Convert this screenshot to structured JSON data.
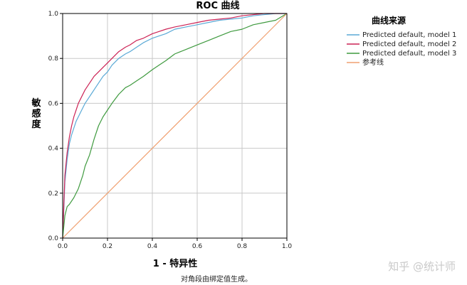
{
  "chart_data": {
    "type": "line",
    "title": "ROC 曲线",
    "xlabel": "1 - 特异性",
    "ylabel": "敏感度",
    "xlim": [
      0,
      1
    ],
    "ylim": [
      0,
      1
    ],
    "xticks": [
      "0.0",
      "0.2",
      "0.4",
      "0.6",
      "0.8",
      "1.0"
    ],
    "yticks": [
      "0.0",
      "0.2",
      "0.4",
      "0.6",
      "0.8",
      "1.0"
    ],
    "grid": true,
    "legend": {
      "title": "曲线来源",
      "placement": "right"
    },
    "footnote": "对角段由绑定值生成。",
    "series": [
      {
        "name": "Predicted default, model 1",
        "color": "#5aa9d6",
        "x": [
          0,
          0.005,
          0.01,
          0.02,
          0.03,
          0.04,
          0.05,
          0.06,
          0.07,
          0.08,
          0.1,
          0.12,
          0.14,
          0.16,
          0.18,
          0.2,
          0.22,
          0.25,
          0.28,
          0.3,
          0.33,
          0.36,
          0.4,
          0.43,
          0.46,
          0.5,
          0.55,
          0.6,
          0.65,
          0.7,
          0.75,
          0.8,
          0.85,
          0.9,
          0.95,
          1.0
        ],
        "y": [
          0,
          0.12,
          0.25,
          0.35,
          0.42,
          0.46,
          0.49,
          0.52,
          0.54,
          0.56,
          0.6,
          0.63,
          0.66,
          0.69,
          0.72,
          0.74,
          0.77,
          0.8,
          0.82,
          0.83,
          0.85,
          0.87,
          0.89,
          0.9,
          0.91,
          0.93,
          0.94,
          0.95,
          0.96,
          0.97,
          0.975,
          0.98,
          0.99,
          0.995,
          1.0,
          1.0
        ]
      },
      {
        "name": "Predicted default, model 2",
        "color": "#cc2255",
        "x": [
          0,
          0.005,
          0.01,
          0.02,
          0.03,
          0.04,
          0.05,
          0.06,
          0.07,
          0.08,
          0.1,
          0.12,
          0.14,
          0.16,
          0.18,
          0.2,
          0.22,
          0.25,
          0.28,
          0.3,
          0.33,
          0.36,
          0.4,
          0.43,
          0.46,
          0.5,
          0.55,
          0.6,
          0.65,
          0.7,
          0.75,
          0.8,
          0.85,
          0.9,
          0.95,
          1.0
        ],
        "y": [
          0,
          0.14,
          0.28,
          0.38,
          0.45,
          0.5,
          0.54,
          0.57,
          0.6,
          0.62,
          0.66,
          0.69,
          0.72,
          0.74,
          0.76,
          0.78,
          0.8,
          0.83,
          0.85,
          0.86,
          0.88,
          0.89,
          0.91,
          0.92,
          0.93,
          0.94,
          0.95,
          0.96,
          0.97,
          0.975,
          0.98,
          0.99,
          0.995,
          1.0,
          1.0,
          1.0
        ]
      },
      {
        "name": "Predicted default, model 3",
        "color": "#3f9a3f",
        "x": [
          0,
          0.005,
          0.01,
          0.02,
          0.03,
          0.05,
          0.07,
          0.09,
          0.1,
          0.12,
          0.14,
          0.16,
          0.18,
          0.2,
          0.22,
          0.25,
          0.28,
          0.3,
          0.33,
          0.36,
          0.4,
          0.43,
          0.46,
          0.5,
          0.55,
          0.6,
          0.65,
          0.7,
          0.75,
          0.8,
          0.85,
          0.9,
          0.95,
          1.0
        ],
        "y": [
          0,
          0.05,
          0.1,
          0.14,
          0.15,
          0.18,
          0.22,
          0.28,
          0.32,
          0.37,
          0.44,
          0.5,
          0.54,
          0.57,
          0.6,
          0.64,
          0.67,
          0.68,
          0.7,
          0.72,
          0.75,
          0.77,
          0.79,
          0.82,
          0.84,
          0.86,
          0.88,
          0.9,
          0.92,
          0.93,
          0.95,
          0.96,
          0.97,
          1.0
        ]
      },
      {
        "name": "参考线",
        "color": "#f0a070",
        "x": [
          0,
          1
        ],
        "y": [
          0,
          1
        ]
      }
    ]
  },
  "watermark": "知乎 @统计师"
}
